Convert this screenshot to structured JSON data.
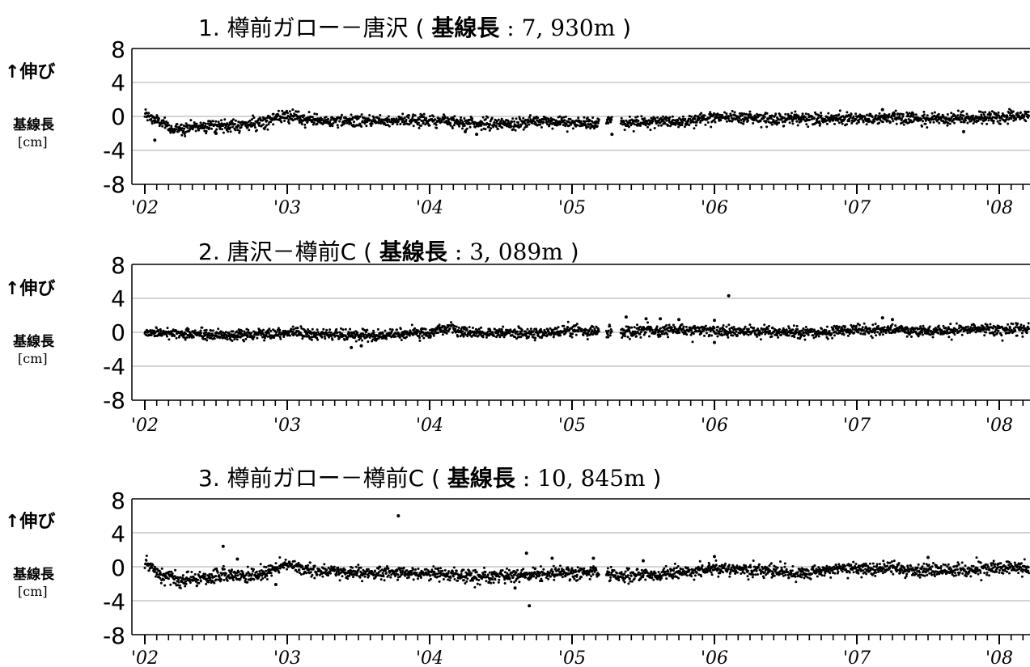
{
  "chart_data": [
    {
      "type": "scatter",
      "title": "1. 樽前ガロー－唐沢",
      "baseline_label": "基線長",
      "baseline_value": "7, 930m",
      "ylabel_top": "↑伸び",
      "ylabel_mid": "基線長",
      "ylabel_unit": "[cm]",
      "ylim": [
        -8,
        8
      ],
      "yticks": [
        "8",
        "4",
        "0",
        "-4",
        "-8"
      ],
      "xlim": [
        2002.0,
        2008.3
      ],
      "xticks": [
        {
          "label": "'02",
          "value": 2002.0
        },
        {
          "label": "'03",
          "value": 2003.0
        },
        {
          "label": "'04",
          "value": 2004.0
        },
        {
          "label": "'05",
          "value": 2005.0
        },
        {
          "label": "'06",
          "value": 2006.0
        },
        {
          "label": "'07",
          "value": 2007.0
        },
        {
          "label": "'08",
          "value": 2008.0
        }
      ],
      "gridlines_y": [
        4,
        0,
        -4
      ],
      "series": [
        {
          "x": [
            2002.0,
            2002.1,
            2002.2,
            2002.3,
            2002.45,
            2002.6,
            2002.75,
            2002.9,
            2003.0,
            2003.2,
            2003.4,
            2003.6,
            2003.8,
            2004.0,
            2004.2,
            2004.4,
            2004.6,
            2004.8,
            2005.0,
            2005.15,
            2005.25,
            2005.35,
            2005.5,
            2005.7,
            2005.85,
            2006.0,
            2006.2,
            2006.4,
            2006.6,
            2006.8,
            2007.0,
            2007.2,
            2007.4,
            2007.6,
            2007.8,
            2008.0,
            2008.15,
            2008.3
          ],
          "y": [
            0.2,
            -0.6,
            -1.6,
            -1.3,
            -1.0,
            -1.1,
            -0.9,
            -0.3,
            0.0,
            -0.5,
            -0.6,
            -0.5,
            -0.4,
            -0.5,
            -0.6,
            -0.9,
            -0.9,
            -0.5,
            -0.8,
            -0.9,
            -0.4,
            -0.7,
            -0.7,
            -0.6,
            -0.4,
            0.0,
            -0.1,
            -0.2,
            -0.4,
            -0.2,
            -0.2,
            -0.2,
            -0.2,
            -0.3,
            -0.2,
            -0.1,
            0.0,
            -0.1
          ],
          "scatter": 0.35,
          "gaps": [
            [
              2005.19,
              2005.24
            ],
            [
              2005.28,
              2005.34
            ]
          ],
          "outliers": [
            {
              "x": 2002.07,
              "y": -2.8
            },
            {
              "x": 2002.5,
              "y": -2.0
            },
            {
              "x": 2004.25,
              "y": -1.8
            },
            {
              "x": 2004.33,
              "y": -2.1
            },
            {
              "x": 2007.18,
              "y": 0.8
            },
            {
              "x": 2007.75,
              "y": -1.8
            },
            {
              "x": 2005.28,
              "y": -2.1
            }
          ]
        }
      ]
    },
    {
      "type": "scatter",
      "title": "2. 唐沢－樽前C",
      "baseline_label": "基線長",
      "baseline_value": "3, 089m",
      "ylabel_top": "↑伸び",
      "ylabel_mid": "基線長",
      "ylabel_unit": "[cm]",
      "ylim": [
        -8,
        8
      ],
      "yticks": [
        "8",
        "4",
        "0",
        "-4",
        "-8"
      ],
      "xlim": [
        2002.0,
        2008.3
      ],
      "xticks": [
        {
          "label": "'02",
          "value": 2002.0
        },
        {
          "label": "'03",
          "value": 2003.0
        },
        {
          "label": "'04",
          "value": 2004.0
        },
        {
          "label": "'05",
          "value": 2005.0
        },
        {
          "label": "'06",
          "value": 2006.0
        },
        {
          "label": "'07",
          "value": 2007.0
        },
        {
          "label": "'08",
          "value": 2008.0
        }
      ],
      "gridlines_y": [
        4,
        0,
        -4
      ],
      "series": [
        {
          "x": [
            2002.0,
            2002.2,
            2002.4,
            2002.6,
            2002.8,
            2003.0,
            2003.2,
            2003.4,
            2003.6,
            2003.8,
            2004.0,
            2004.14,
            2004.2,
            2004.4,
            2004.6,
            2004.8,
            2005.0,
            2005.15,
            2005.25,
            2005.35,
            2005.5,
            2005.7,
            2005.9,
            2006.1,
            2006.3,
            2006.5,
            2006.7,
            2006.9,
            2007.0,
            2007.2,
            2007.4,
            2007.6,
            2007.8,
            2008.0,
            2008.3
          ],
          "y": [
            0.0,
            -0.1,
            -0.3,
            -0.4,
            -0.2,
            0.0,
            -0.2,
            -0.3,
            -0.4,
            -0.2,
            -0.1,
            0.6,
            0.0,
            -0.1,
            -0.1,
            0.0,
            0.2,
            0.1,
            0.1,
            0.0,
            0.2,
            0.2,
            0.3,
            0.1,
            0.1,
            0.0,
            -0.1,
            0.1,
            0.2,
            0.3,
            0.1,
            0.1,
            0.4,
            0.3,
            0.4
          ],
          "scatter": 0.32,
          "gaps": [
            [
              2005.19,
              2005.24
            ],
            [
              2005.28,
              2005.34
            ]
          ],
          "outliers": [
            {
              "x": 2006.1,
              "y": 4.3
            },
            {
              "x": 2005.38,
              "y": 1.8
            },
            {
              "x": 2005.52,
              "y": 1.6
            },
            {
              "x": 2005.62,
              "y": 1.6
            },
            {
              "x": 2005.75,
              "y": 1.5
            },
            {
              "x": 2006.0,
              "y": 1.4
            },
            {
              "x": 2007.18,
              "y": 1.7
            },
            {
              "x": 2007.25,
              "y": 1.5
            },
            {
              "x": 2008.25,
              "y": 2.1
            },
            {
              "x": 2003.45,
              "y": -1.8
            },
            {
              "x": 2003.52,
              "y": -1.6
            },
            {
              "x": 2006.0,
              "y": -1.2
            }
          ]
        }
      ]
    },
    {
      "type": "scatter",
      "title": "3. 樽前ガロー－樽前C",
      "baseline_label": "基線長",
      "baseline_value": "10, 845m",
      "ylabel_top": "↑伸び",
      "ylabel_mid": "基線長",
      "ylabel_unit": "[cm]",
      "ylim": [
        -8,
        8
      ],
      "yticks": [
        "8",
        "4",
        "0",
        "-4",
        "-8"
      ],
      "xlim": [
        2002.0,
        2008.3
      ],
      "xticks": [
        {
          "label": "'02",
          "value": 2002.0
        },
        {
          "label": "'03",
          "value": 2003.0
        },
        {
          "label": "'04",
          "value": 2004.0
        },
        {
          "label": "'05",
          "value": 2005.0
        },
        {
          "label": "'06",
          "value": 2006.0
        },
        {
          "label": "'07",
          "value": 2007.0
        },
        {
          "label": "'08",
          "value": 2008.0
        }
      ],
      "gridlines_y": [
        4,
        0,
        -4
      ],
      "series": [
        {
          "x": [
            2002.0,
            2002.1,
            2002.25,
            2002.4,
            2002.55,
            2002.7,
            2002.85,
            2003.0,
            2003.2,
            2003.4,
            2003.6,
            2003.8,
            2004.0,
            2004.2,
            2004.4,
            2004.6,
            2004.8,
            2005.0,
            2005.2,
            2005.4,
            2005.6,
            2005.8,
            2006.0,
            2006.2,
            2006.4,
            2006.6,
            2006.8,
            2007.0,
            2007.2,
            2007.4,
            2007.6,
            2007.8,
            2008.0,
            2008.15,
            2008.3
          ],
          "y": [
            0.4,
            -0.8,
            -1.8,
            -1.4,
            -1.0,
            -1.2,
            -0.8,
            0.3,
            -0.5,
            -0.7,
            -0.8,
            -0.7,
            -0.8,
            -1.0,
            -1.2,
            -1.0,
            -0.8,
            -0.6,
            -0.8,
            -1.0,
            -1.0,
            -0.6,
            -0.2,
            -0.3,
            -0.5,
            -0.7,
            -0.5,
            -0.2,
            -0.2,
            -0.4,
            -0.5,
            -0.3,
            -0.1,
            0.0,
            -0.2
          ],
          "scatter": 0.4,
          "gaps": [
            [
              2005.19,
              2005.24
            ]
          ],
          "outliers": [
            {
              "x": 2003.78,
              "y": 6.0
            },
            {
              "x": 2002.55,
              "y": 2.4
            },
            {
              "x": 2002.65,
              "y": 0.9
            },
            {
              "x": 2004.68,
              "y": 1.6
            },
            {
              "x": 2004.86,
              "y": 1.0
            },
            {
              "x": 2005.15,
              "y": 1.0
            },
            {
              "x": 2005.5,
              "y": 0.7
            },
            {
              "x": 2006.0,
              "y": 1.2
            },
            {
              "x": 2007.5,
              "y": 1.1
            },
            {
              "x": 2004.7,
              "y": -4.6
            },
            {
              "x": 2004.6,
              "y": -2.5
            },
            {
              "x": 2002.92,
              "y": -2.1
            }
          ]
        }
      ]
    }
  ]
}
